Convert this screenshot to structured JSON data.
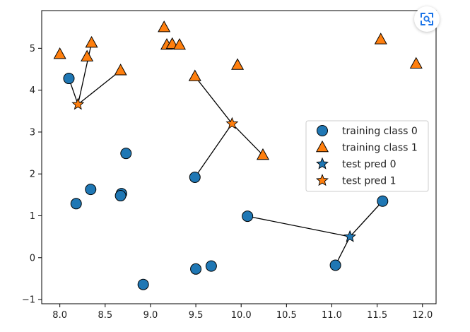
{
  "chart_data": {
    "type": "scatter",
    "title": "",
    "xlabel": "",
    "ylabel": "",
    "xlim": [
      7.8,
      12.15
    ],
    "ylim": [
      -1.1,
      5.9
    ],
    "xticks": [
      8.0,
      8.5,
      9.0,
      9.5,
      10.0,
      10.5,
      11.0,
      11.5,
      12.0
    ],
    "xtick_labels": [
      "8.0",
      "8.5",
      "9.0",
      "9.5",
      "10.0",
      "10.5",
      "11.0",
      "11.5",
      "12.0"
    ],
    "yticks": [
      -1,
      0,
      1,
      2,
      3,
      4,
      5
    ],
    "ytick_labels": [
      "−1",
      "0",
      "1",
      "2",
      "3",
      "4",
      "5"
    ],
    "grid": false,
    "legend_position": "center-right",
    "series": [
      {
        "name": "training class 0",
        "marker": "circle",
        "color": "#1f77b4",
        "points": [
          [
            8.1,
            4.28
          ],
          [
            8.18,
            1.29
          ],
          [
            8.34,
            1.63
          ],
          [
            8.68,
            1.53
          ],
          [
            8.67,
            1.48
          ],
          [
            8.73,
            2.49
          ],
          [
            8.92,
            -0.64
          ],
          [
            9.49,
            1.92
          ],
          [
            9.5,
            -0.27
          ],
          [
            9.67,
            -0.2
          ],
          [
            10.07,
            0.99
          ],
          [
            11.04,
            -0.18
          ],
          [
            11.56,
            1.35
          ]
        ]
      },
      {
        "name": "training class 1",
        "marker": "triangle",
        "color": "#ff7f0e",
        "points": [
          [
            8.0,
            4.86
          ],
          [
            8.3,
            4.8
          ],
          [
            8.35,
            5.13
          ],
          [
            8.67,
            4.47
          ],
          [
            9.15,
            5.5
          ],
          [
            9.18,
            5.08
          ],
          [
            9.24,
            5.1
          ],
          [
            9.32,
            5.08
          ],
          [
            9.49,
            4.33
          ],
          [
            9.96,
            4.6
          ],
          [
            10.24,
            2.45
          ],
          [
            11.54,
            5.21
          ],
          [
            11.93,
            4.63
          ]
        ]
      },
      {
        "name": "test pred 0",
        "marker": "star",
        "color": "#1f77b4",
        "points": [
          [
            11.2,
            0.5
          ]
        ]
      },
      {
        "name": "test pred 1",
        "marker": "star",
        "color": "#ff7f0e",
        "points": [
          [
            8.2,
            3.66
          ],
          [
            9.9,
            3.2
          ]
        ]
      }
    ],
    "neighbor_lines": [
      {
        "from": [
          8.2,
          3.66
        ],
        "to": [
          8.1,
          4.28
        ]
      },
      {
        "from": [
          8.2,
          3.66
        ],
        "to": [
          8.35,
          5.13
        ]
      },
      {
        "from": [
          8.2,
          3.66
        ],
        "to": [
          8.67,
          4.47
        ]
      },
      {
        "from": [
          9.9,
          3.2
        ],
        "to": [
          9.49,
          4.33
        ]
      },
      {
        "from": [
          9.9,
          3.2
        ],
        "to": [
          9.49,
          1.92
        ]
      },
      {
        "from": [
          9.9,
          3.2
        ],
        "to": [
          10.24,
          2.45
        ]
      },
      {
        "from": [
          11.2,
          0.5
        ],
        "to": [
          10.07,
          0.99
        ]
      },
      {
        "from": [
          11.2,
          0.5
        ],
        "to": [
          11.04,
          -0.18
        ]
      },
      {
        "from": [
          11.2,
          0.5
        ],
        "to": [
          11.56,
          1.35
        ]
      }
    ],
    "legend_entries": [
      "training class 0",
      "training class 1",
      "test pred 0",
      "test pred 1"
    ]
  },
  "overlay": {
    "lens_icon": "visual-search-icon"
  }
}
